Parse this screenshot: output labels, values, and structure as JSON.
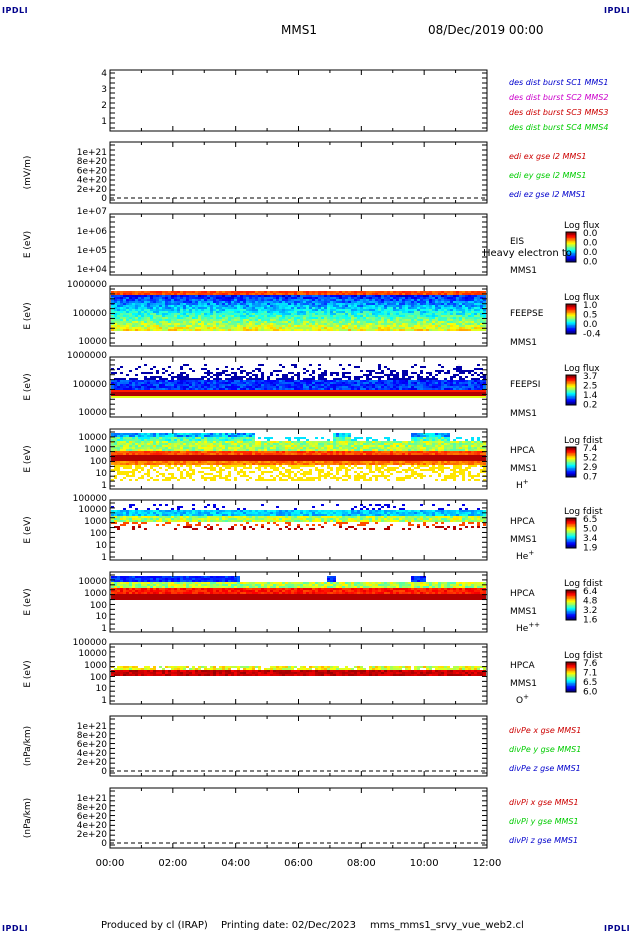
{
  "header": {
    "corner_label": "IPDLI",
    "spacecraft": "MMS1",
    "date": "08/Dec/2019 00:00"
  },
  "footer": {
    "produced": "Produced by cl (IRAP)",
    "printing": "Printing date: 02/Dec/2023",
    "file": "mms_mms1_srvy_vue_web2.cl"
  },
  "colors": {
    "blue": "#0000cc",
    "magenta": "#cc00cc",
    "red": "#cc0000",
    "green": "#00cc00"
  },
  "chart_data": [
    {
      "type": "line",
      "panel": "des",
      "yticks": [
        "1",
        "2",
        "3",
        "4"
      ],
      "ylim": [
        0.6,
        4.4
      ],
      "ylabel": "",
      "legend": [
        {
          "text": "des dist burst SC1 MMS1",
          "color": "#0000cc"
        },
        {
          "text": "des dist burst SC2 MMS2",
          "color": "#cc00cc"
        },
        {
          "text": "des dist burst SC3 MMS3",
          "color": "#cc0000"
        },
        {
          "text": "des dist burst SC4 MMS4",
          "color": "#00cc00"
        }
      ]
    },
    {
      "type": "line",
      "panel": "edi",
      "ylabel": "(mV/m)",
      "yticks": [
        "0",
        "2e+20",
        "4e+20",
        "6e+20",
        "8e+20",
        "1e+21"
      ],
      "ylim": [
        0,
        1e+21
      ],
      "legend": [
        {
          "text": "edi ex gse l2 MMS1",
          "color": "#cc0000"
        },
        {
          "text": "edi ey gse l2 MMS1",
          "color": "#00cc00"
        },
        {
          "text": "edi ez gse l2 MMS1",
          "color": "#0000cc"
        }
      ]
    },
    {
      "type": "heatmap",
      "panel": "eis",
      "ylabel": "E (eV)",
      "yticks": [
        "1e+04",
        "1e+05",
        "1e+06",
        "1e+07"
      ],
      "instrument": "EIS",
      "spacecraft": "MMS1",
      "overlay_text": "Heavy electron to",
      "colorbar": {
        "title": "Log flux",
        "ticks": [
          "0.0",
          "0.0",
          "0.0",
          "0.0"
        ]
      }
    },
    {
      "type": "heatmap",
      "panel": "feepse",
      "ylabel": "E (eV)",
      "yticks": [
        "10000",
        "100000",
        "1000000"
      ],
      "instrument": "FEEPSE",
      "spacecraft": "MMS1",
      "colorbar": {
        "title": "Log flux",
        "ticks": [
          "1.0",
          "0.5",
          "0.0",
          "-0.4"
        ]
      }
    },
    {
      "type": "heatmap",
      "panel": "feepsi",
      "ylabel": "E (eV)",
      "yticks": [
        "10000",
        "100000",
        "1000000"
      ],
      "instrument": "FEEPSI",
      "spacecraft": "MMS1",
      "colorbar": {
        "title": "Log flux",
        "ticks": [
          "3.7",
          "2.5",
          "1.4",
          "0.2"
        ]
      }
    },
    {
      "type": "heatmap",
      "panel": "hpca_h",
      "ylabel": "E (eV)",
      "yticks": [
        "1",
        "10",
        "100",
        "1000",
        "10000"
      ],
      "instrument": "HPCA",
      "spacecraft": "MMS1",
      "species": "H",
      "charge": "+",
      "colorbar": {
        "title": "Log fdist",
        "ticks": [
          "7.4",
          "5.2",
          "2.9",
          "0.7"
        ]
      }
    },
    {
      "type": "heatmap",
      "panel": "hpca_he",
      "ylabel": "E (eV)",
      "yticks": [
        "1",
        "10",
        "100",
        "1000",
        "10000",
        "100000"
      ],
      "instrument": "HPCA",
      "spacecraft": "MMS1",
      "species": "He",
      "charge": "+",
      "colorbar": {
        "title": "Log fdist",
        "ticks": [
          "6.5",
          "5.0",
          "3.4",
          "1.9"
        ]
      }
    },
    {
      "type": "heatmap",
      "panel": "hpca_hepp",
      "ylabel": "E (eV)",
      "yticks": [
        "1",
        "10",
        "100",
        "1000",
        "10000"
      ],
      "instrument": "HPCA",
      "spacecraft": "MMS1",
      "species": "He",
      "charge": "++",
      "colorbar": {
        "title": "Log fdist",
        "ticks": [
          "6.4",
          "4.8",
          "3.2",
          "1.6"
        ]
      }
    },
    {
      "type": "heatmap",
      "panel": "hpca_o",
      "ylabel": "E (eV)",
      "yticks": [
        "1",
        "10",
        "100",
        "1000",
        "10000",
        "100000"
      ],
      "instrument": "HPCA",
      "spacecraft": "MMS1",
      "species": "O",
      "charge": "+",
      "colorbar": {
        "title": "Log fdist",
        "ticks": [
          "7.6",
          "7.1",
          "6.5",
          "6.0"
        ]
      }
    },
    {
      "type": "line",
      "panel": "divpe",
      "ylabel": "(nPa/km)",
      "yticks": [
        "0",
        "2e+20",
        "4e+20",
        "6e+20",
        "8e+20",
        "1e+21"
      ],
      "ylim": [
        0,
        1e+21
      ],
      "legend": [
        {
          "text": "divPe x gse MMS1",
          "color": "#cc0000"
        },
        {
          "text": "divPe y gse MMS1",
          "color": "#00cc00"
        },
        {
          "text": "divPe z gse MMS1",
          "color": "#0000cc"
        }
      ]
    },
    {
      "type": "line",
      "panel": "divpi",
      "ylabel": "(nPa/km)",
      "yticks": [
        "0",
        "2e+20",
        "4e+20",
        "6e+20",
        "8e+20",
        "1e+21"
      ],
      "ylim": [
        0,
        1e+21
      ],
      "legend": [
        {
          "text": "divPi x gse MMS1",
          "color": "#cc0000"
        },
        {
          "text": "divPi y gse MMS1",
          "color": "#00cc00"
        },
        {
          "text": "divPi z gse MMS1",
          "color": "#0000cc"
        }
      ],
      "xticks": [
        "00:00",
        "02:00",
        "04:00",
        "06:00",
        "08:00",
        "10:00",
        "12:00"
      ]
    }
  ]
}
